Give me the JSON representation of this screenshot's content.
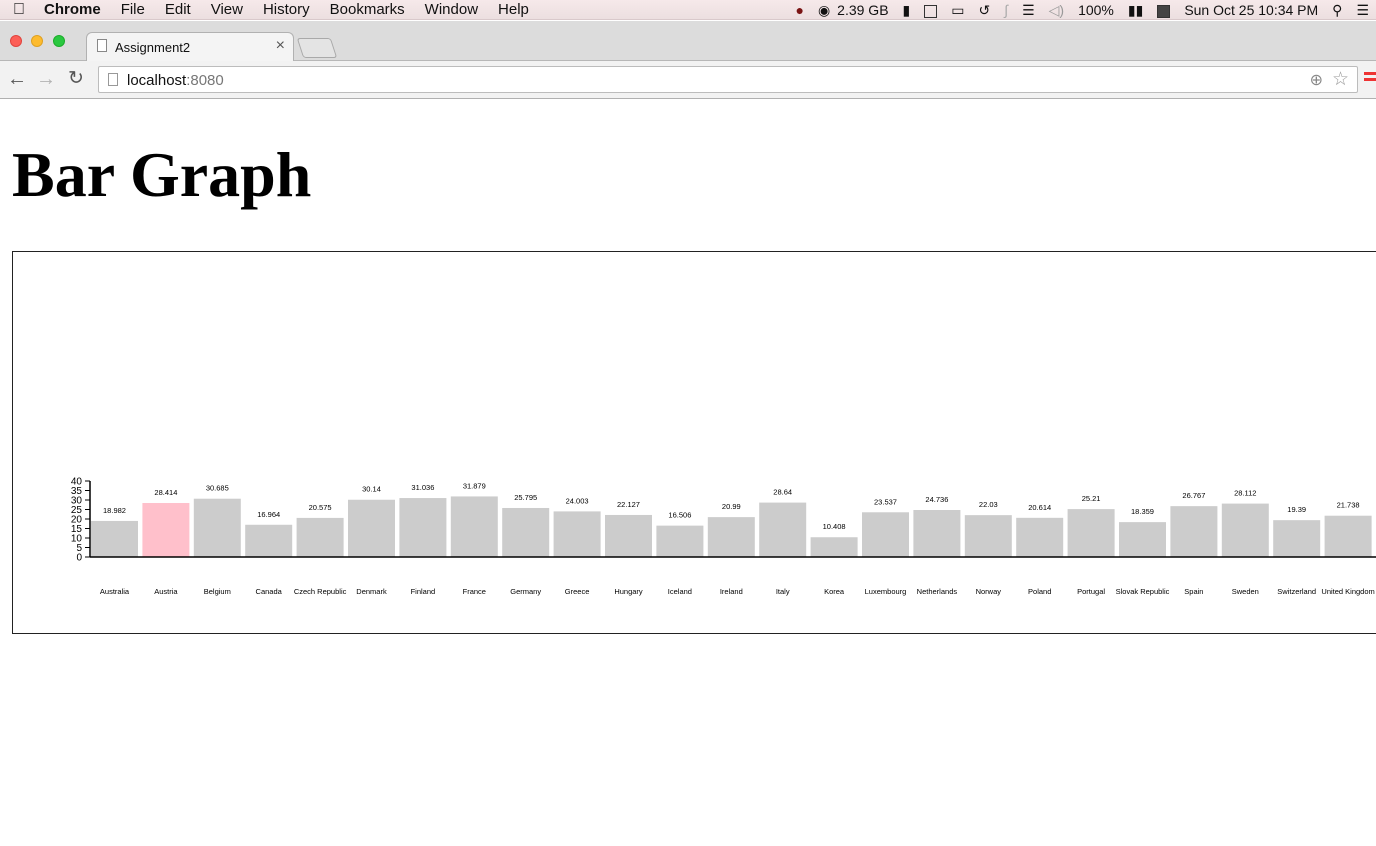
{
  "menubar": {
    "apple": "",
    "items": [
      "Chrome",
      "File",
      "Edit",
      "View",
      "History",
      "Bookmarks",
      "Window",
      "Help"
    ],
    "memory": "2.39 GB",
    "battery": "100%",
    "datetime": "Sun Oct 25  10:34 PM"
  },
  "browser": {
    "tab_title": "Assignment2",
    "tab_close": "×",
    "url_host": "localhost",
    "url_port": ":8080"
  },
  "page": {
    "heading": "Bar Graph"
  },
  "chart_data": {
    "type": "bar",
    "title": "",
    "xlabel": "",
    "ylabel": "",
    "ylim": [
      0,
      40
    ],
    "yticks": [
      0,
      5,
      10,
      15,
      20,
      25,
      30,
      35,
      40
    ],
    "bar_color": "#cccccc",
    "highlight_color": "#ffc0cb",
    "highlight_index": 1,
    "categories": [
      "Australia",
      "Austria",
      "Belgium",
      "Canada",
      "Czech Republic",
      "Denmark",
      "Finland",
      "France",
      "Germany",
      "Greece",
      "Hungary",
      "Iceland",
      "Ireland",
      "Italy",
      "Korea",
      "Luxembourg",
      "Netherlands",
      "Norway",
      "Poland",
      "Portugal",
      "Slovak Republic",
      "Spain",
      "Sweden",
      "Switzerland",
      "United Kingdom"
    ],
    "values": [
      18.982,
      28.414,
      30.685,
      16.964,
      20.575,
      30.14,
      31.036,
      31.879,
      25.795,
      24.003,
      22.127,
      16.506,
      20.99,
      28.64,
      10.408,
      23.537,
      24.736,
      22.03,
      20.614,
      25.21,
      18.359,
      26.767,
      28.112,
      19.39,
      21.738
    ]
  }
}
